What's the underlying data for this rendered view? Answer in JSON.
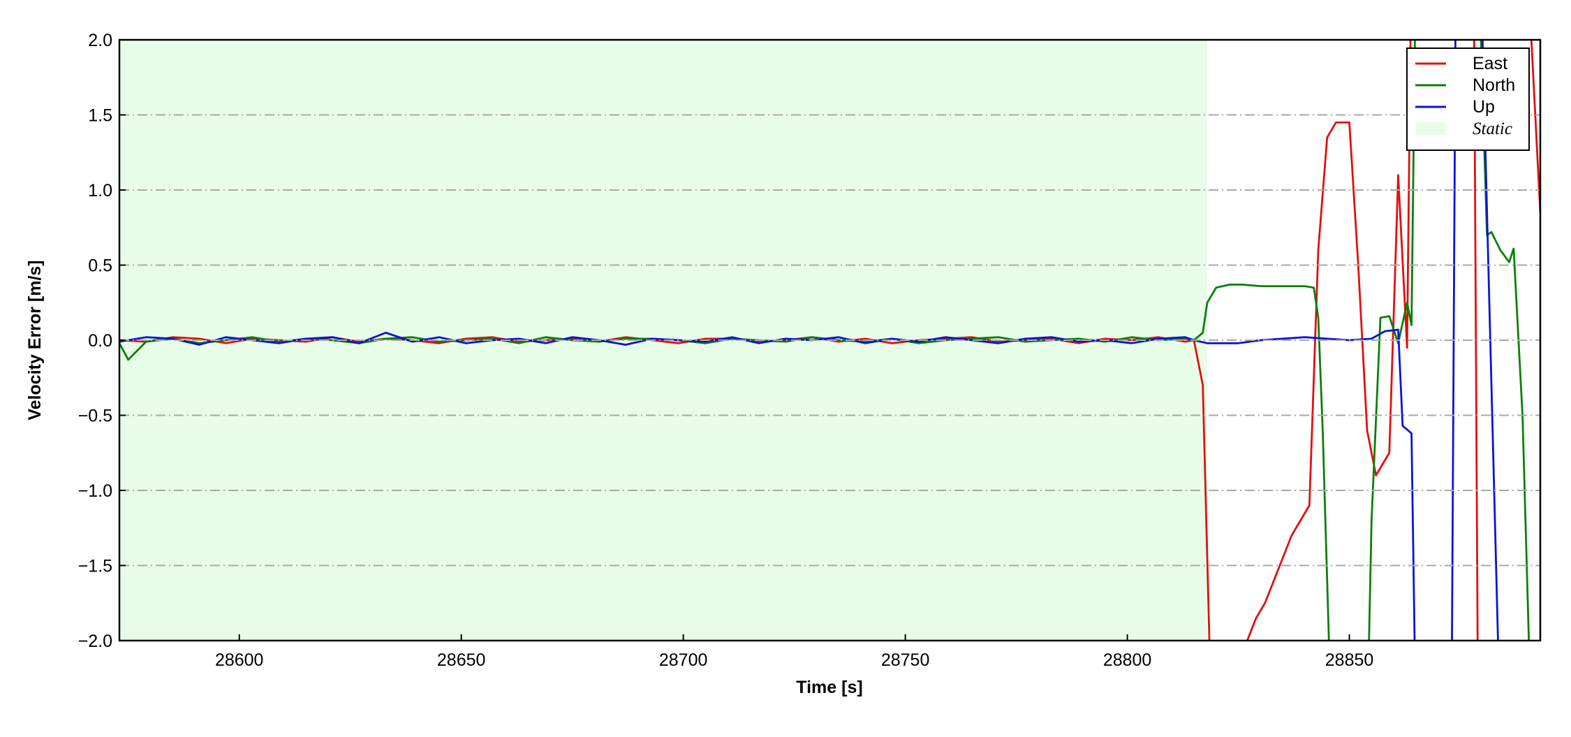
{
  "chart_data": {
    "type": "line",
    "xlabel": "Time [s]",
    "ylabel": "Velocity Error [m/s]",
    "xlim": [
      28573,
      28893
    ],
    "ylim": [
      -2,
      2
    ],
    "xticks": [
      28600,
      28650,
      28700,
      28750,
      28800,
      28850
    ],
    "yticks": [
      {
        "value": -2,
        "label": "−2.0"
      },
      {
        "value": -1.5,
        "label": "−1.5"
      },
      {
        "value": -1,
        "label": "−1.0"
      },
      {
        "value": -0.5,
        "label": "−0.5"
      },
      {
        "value": 0,
        "label": "0.0"
      },
      {
        "value": 0.5,
        "label": "0.5"
      },
      {
        "value": 1,
        "label": "1.0"
      },
      {
        "value": 1.5,
        "label": "1.5"
      },
      {
        "value": 2,
        "label": "2.0"
      }
    ],
    "grid": true,
    "legend": "upper right",
    "shaded_regions": [
      {
        "name": "Static",
        "start": 28573,
        "end": 28818,
        "color": "#e8fde8"
      }
    ],
    "series": [
      {
        "name": "East",
        "color": "#e01010",
        "x": [
          28573,
          28579,
          28585,
          28591,
          28597,
          28603,
          28609,
          28615,
          28621,
          28627,
          28633,
          28639,
          28645,
          28651,
          28657,
          28663,
          28669,
          28675,
          28681,
          28687,
          28693,
          28699,
          28705,
          28711,
          28717,
          28723,
          28729,
          28735,
          28741,
          28747,
          28753,
          28759,
          28765,
          28771,
          28777,
          28783,
          28789,
          28795,
          28801,
          28807,
          28813,
          28815,
          28817,
          28819,
          28826,
          28827,
          28829,
          28831,
          28833,
          28835,
          28837,
          28839,
          28841,
          28843,
          28845,
          28847,
          28850,
          28852,
          28854,
          28856,
          28859,
          28861,
          28863,
          28864,
          28878,
          28879,
          28885,
          28891,
          28893
        ],
        "values": [
          0.0,
          -0.01,
          0.02,
          0.01,
          -0.02,
          0.01,
          0.0,
          -0.01,
          0.02,
          -0.01,
          0.01,
          0.0,
          -0.02,
          0.01,
          0.02,
          -0.01,
          0.0,
          0.01,
          -0.01,
          0.02,
          0.0,
          -0.02,
          0.01,
          0.01,
          -0.01,
          0.0,
          0.02,
          -0.01,
          0.01,
          -0.02,
          0.0,
          0.01,
          0.02,
          -0.01,
          0.0,
          0.01,
          -0.02,
          0.01,
          0.0,
          0.02,
          -0.01,
          0.0,
          -0.3,
          -2.6,
          -2.6,
          -2.0,
          -1.85,
          -1.75,
          -1.6,
          -1.45,
          -1.3,
          -1.2,
          -1.1,
          0.6,
          1.35,
          1.45,
          1.45,
          0.5,
          -0.6,
          -0.9,
          -0.75,
          1.1,
          -0.05,
          2.6,
          2.6,
          -2.6,
          null,
          2.0,
          0.85
        ]
      },
      {
        "name": "North",
        "color": "#0a800a",
        "x": [
          28573,
          28575,
          28579,
          28585,
          28591,
          28597,
          28603,
          28609,
          28615,
          28621,
          28627,
          28633,
          28639,
          28645,
          28651,
          28657,
          28663,
          28669,
          28675,
          28681,
          28687,
          28693,
          28699,
          28705,
          28711,
          28717,
          28723,
          28729,
          28735,
          28741,
          28747,
          28753,
          28759,
          28765,
          28771,
          28777,
          28783,
          28789,
          28795,
          28801,
          28807,
          28813,
          28815,
          28817,
          28818,
          28820,
          28823,
          28826,
          28830,
          28835,
          28840,
          28842,
          28843,
          28844,
          28846,
          28854,
          28855,
          28857,
          28859,
          28861,
          28863,
          28864,
          28865,
          28879,
          28881,
          28882,
          28884,
          28886,
          28887,
          28889,
          28891
        ],
        "values": [
          -0.02,
          -0.13,
          -0.01,
          0.01,
          -0.02,
          0.0,
          0.02,
          -0.01,
          0.01,
          0.0,
          -0.02,
          0.01,
          0.02,
          -0.01,
          0.0,
          0.01,
          -0.02,
          0.02,
          0.0,
          -0.01,
          0.01,
          0.01,
          0.0,
          -0.02,
          0.01,
          0.0,
          -0.01,
          0.02,
          0.0,
          -0.01,
          0.01,
          -0.02,
          0.0,
          0.01,
          0.02,
          -0.01,
          0.0,
          0.01,
          -0.01,
          0.02,
          0.0,
          0.01,
          0.0,
          0.05,
          0.25,
          0.35,
          0.37,
          0.37,
          0.36,
          0.36,
          0.36,
          0.35,
          0.15,
          -0.6,
          -2.6,
          -2.6,
          -1.2,
          0.15,
          0.16,
          -0.02,
          0.25,
          0.1,
          2.6,
          2.6,
          0.7,
          0.72,
          0.6,
          0.52,
          0.61,
          -0.5,
          -2.6
        ]
      },
      {
        "name": "Up",
        "color": "#0a14d8",
        "x": [
          28573,
          28579,
          28585,
          28591,
          28597,
          28603,
          28609,
          28615,
          28621,
          28627,
          28633,
          28639,
          28645,
          28651,
          28657,
          28663,
          28669,
          28675,
          28681,
          28687,
          28693,
          28699,
          28705,
          28711,
          28717,
          28723,
          28729,
          28735,
          28741,
          28747,
          28753,
          28759,
          28765,
          28771,
          28777,
          28783,
          28789,
          28795,
          28801,
          28807,
          28813,
          28815,
          28818,
          28825,
          28830,
          28840,
          28845,
          28850,
          28855,
          28858,
          28861,
          28862,
          28864,
          28865,
          28873,
          28874,
          28879,
          28880,
          28884
        ],
        "values": [
          -0.01,
          0.02,
          0.01,
          -0.03,
          0.02,
          0.0,
          -0.02,
          0.01,
          0.02,
          -0.02,
          0.05,
          -0.01,
          0.02,
          -0.02,
          0.0,
          0.01,
          -0.02,
          0.02,
          0.0,
          -0.03,
          0.01,
          0.0,
          -0.01,
          0.02,
          -0.02,
          0.01,
          0.0,
          0.02,
          -0.02,
          0.01,
          -0.01,
          0.02,
          0.0,
          -0.02,
          0.01,
          0.02,
          -0.01,
          0.0,
          -0.02,
          0.01,
          0.02,
          0.0,
          -0.02,
          -0.02,
          0.0,
          0.02,
          0.01,
          0.0,
          0.01,
          0.06,
          0.07,
          -0.57,
          -0.62,
          -2.6,
          -2.6,
          2.6,
          2.6,
          2.0,
          -2.6
        ]
      }
    ]
  }
}
